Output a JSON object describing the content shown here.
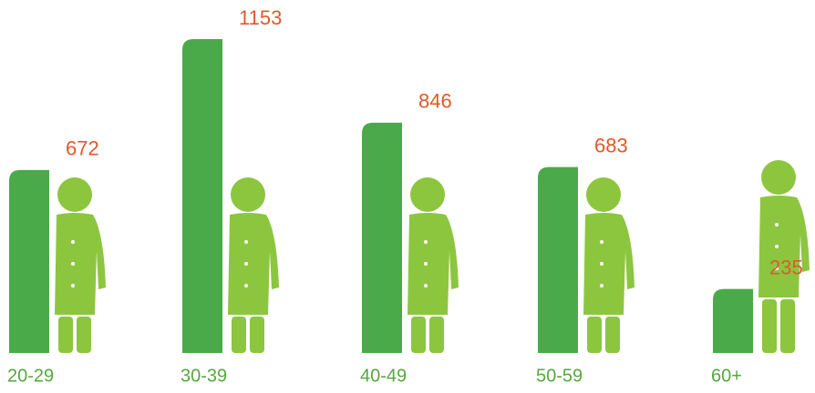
{
  "chart_data": {
    "type": "bar",
    "categories": [
      "20-29",
      "30-39",
      "40-49",
      "50-59",
      "60+"
    ],
    "values": [
      672,
      1153,
      846,
      683,
      235
    ],
    "color": "#4aaa4a",
    "label_color": "#e0592a"
  }
}
